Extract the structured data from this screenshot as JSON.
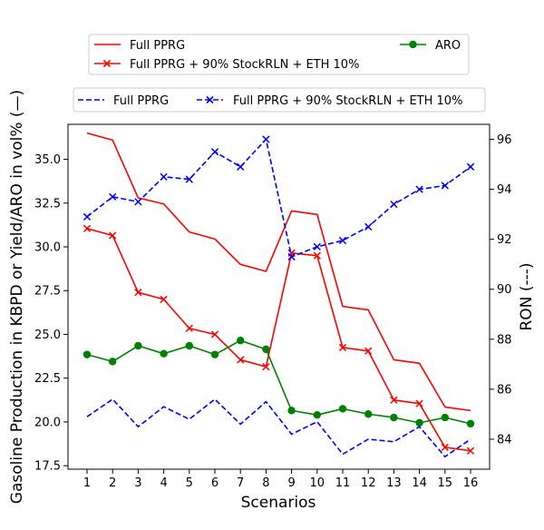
{
  "chart_data": {
    "type": "line",
    "xlabel": "Scenarios",
    "ylabel_left": "Gasoline Production in KBPD or Yield/ARO in vol% (—)",
    "ylabel_right": "RON (---)",
    "categories": [
      "1",
      "2",
      "3",
      "4",
      "5",
      "6",
      "7",
      "8",
      "9",
      "10",
      "11",
      "12",
      "13",
      "14",
      "15",
      "16"
    ],
    "ylim_left": [
      17.3,
      37.0
    ],
    "ylim_right": [
      82.8,
      96.6
    ],
    "yticks_left": [
      "17.5",
      "20.0",
      "22.5",
      "25.0",
      "27.5",
      "30.0",
      "32.5",
      "35.0"
    ],
    "yticks_right": [
      "84",
      "86",
      "88",
      "90",
      "92",
      "94",
      "96"
    ],
    "legend_top": {
      "entries": [
        {
          "label": "Full PPRG",
          "series": "left_full"
        },
        {
          "label": "Full PPRG + 90% StockRLN + ETH 10%",
          "series": "left_mix"
        },
        {
          "label": "ARO",
          "series": "left_aro"
        }
      ]
    },
    "legend_right_axis": {
      "entries": [
        {
          "label": "Full PPRG",
          "series": "right_full"
        },
        {
          "label": "Full PPRG + 90% StockRLN + ETH 10%",
          "series": "right_mix"
        }
      ]
    },
    "series": [
      {
        "id": "left_full",
        "axis": "left",
        "color": "#ff0000",
        "linestyle": "solid",
        "marker": "none",
        "values": [
          36.5,
          36.1,
          32.8,
          32.45,
          30.85,
          30.45,
          29.0,
          28.6,
          32.05,
          31.85,
          26.6,
          26.4,
          23.55,
          23.35,
          20.85,
          20.65
        ]
      },
      {
        "id": "left_mix",
        "axis": "left",
        "color": "#ff0000",
        "linestyle": "solid",
        "marker": "x",
        "values": [
          31.05,
          30.65,
          27.4,
          27.0,
          25.35,
          25.0,
          23.55,
          23.15,
          29.65,
          29.5,
          24.25,
          24.05,
          21.25,
          21.05,
          18.55,
          18.35
        ]
      },
      {
        "id": "left_aro",
        "axis": "left",
        "color": "#008000",
        "linestyle": "solid",
        "marker": "o",
        "values": [
          23.85,
          23.45,
          24.35,
          23.9,
          24.35,
          23.85,
          24.65,
          24.15,
          20.65,
          20.4,
          20.75,
          20.45,
          20.25,
          19.95,
          20.25,
          19.9
        ]
      },
      {
        "id": "right_full",
        "axis": "right",
        "color": "#0000ff",
        "linestyle": "dashed",
        "marker": "none",
        "values": [
          84.9,
          85.6,
          84.5,
          85.3,
          84.8,
          85.6,
          84.6,
          85.5,
          84.2,
          84.7,
          83.4,
          84.0,
          83.9,
          84.5,
          83.3,
          84.0
        ]
      },
      {
        "id": "right_mix",
        "axis": "right",
        "color": "#0000ff",
        "linestyle": "dashed",
        "marker": "x",
        "values": [
          92.9,
          93.7,
          93.5,
          94.5,
          94.4,
          95.5,
          94.9,
          96.0,
          91.3,
          91.7,
          91.95,
          92.5,
          93.4,
          94.0,
          94.15,
          94.9
        ]
      }
    ]
  }
}
